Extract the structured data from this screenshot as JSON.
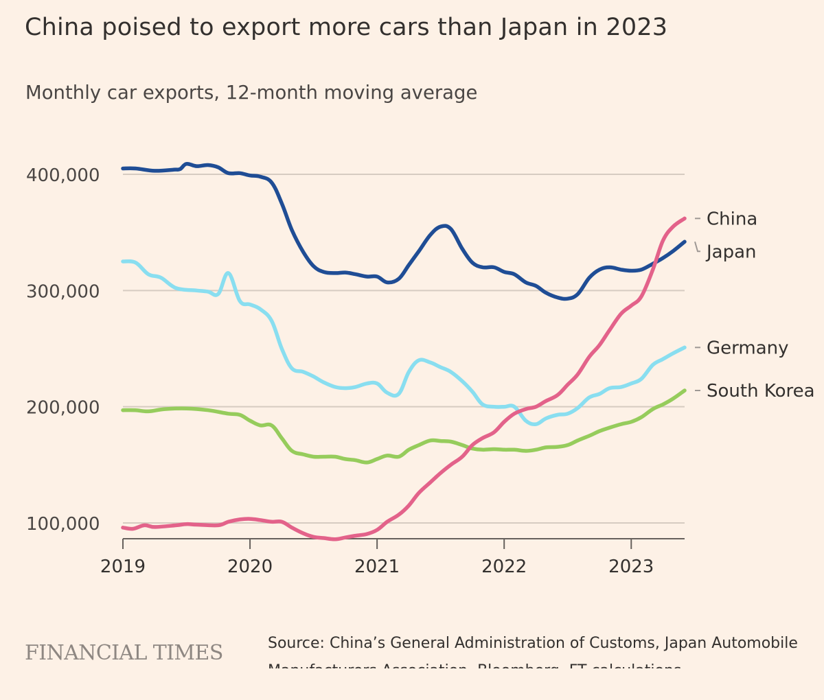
{
  "header": {
    "title": "China poised to export more cars than Japan in 2023",
    "subtitle": "Monthly car exports, 12-month moving average"
  },
  "footer": {
    "logo_text": "FINANCIAL TIMES",
    "source": "Source: China’s General Administration of Customs, Japan Automobile Manufacturers Association, Bloomberg, FT calculations"
  },
  "chart_data": {
    "type": "line",
    "title": "China poised to export more cars than Japan in 2023",
    "subtitle": "Monthly car exports, 12-month moving average",
    "xlabel": "",
    "ylabel": "",
    "xlim": [
      2019.0,
      2023.42
    ],
    "ylim": [
      85000,
      420000
    ],
    "x_ticks": [
      2019,
      2020,
      2021,
      2022,
      2023
    ],
    "x_tick_labels": [
      "2019",
      "2020",
      "2021",
      "2022",
      "2023"
    ],
    "y_ticks": [
      100000,
      200000,
      300000,
      400000
    ],
    "y_tick_labels": [
      "100,000",
      "200,000",
      "300,000",
      "400,000"
    ],
    "grid": "horizontal",
    "legend": "labels at right end of lines",
    "label_order": [
      "China",
      "Japan",
      "Germany",
      "South Korea"
    ],
    "series": [
      {
        "name": "Japan",
        "color": "#1F4D95",
        "points": [
          [
            2019.0,
            405000
          ],
          [
            2019.1,
            405000
          ],
          [
            2019.25,
            403000
          ],
          [
            2019.4,
            404000
          ],
          [
            2019.45,
            404500
          ],
          [
            2019.5,
            409000
          ],
          [
            2019.58,
            407000
          ],
          [
            2019.67,
            408000
          ],
          [
            2019.75,
            406000
          ],
          [
            2019.83,
            401000
          ],
          [
            2019.92,
            401000
          ],
          [
            2020.0,
            399000
          ],
          [
            2020.08,
            398000
          ],
          [
            2020.17,
            393000
          ],
          [
            2020.25,
            375000
          ],
          [
            2020.33,
            352000
          ],
          [
            2020.42,
            333000
          ],
          [
            2020.5,
            321000
          ],
          [
            2020.58,
            316000
          ],
          [
            2020.67,
            315000
          ],
          [
            2020.75,
            315500
          ],
          [
            2020.83,
            314000
          ],
          [
            2020.92,
            312000
          ],
          [
            2021.0,
            312000
          ],
          [
            2021.08,
            307000
          ],
          [
            2021.17,
            310000
          ],
          [
            2021.25,
            322000
          ],
          [
            2021.33,
            334000
          ],
          [
            2021.42,
            348000
          ],
          [
            2021.5,
            355000
          ],
          [
            2021.58,
            353000
          ],
          [
            2021.67,
            336000
          ],
          [
            2021.75,
            324000
          ],
          [
            2021.83,
            320000
          ],
          [
            2021.92,
            320000
          ],
          [
            2022.0,
            316000
          ],
          [
            2022.08,
            314000
          ],
          [
            2022.17,
            307000
          ],
          [
            2022.25,
            304000
          ],
          [
            2022.33,
            298000
          ],
          [
            2022.42,
            294000
          ],
          [
            2022.5,
            293000
          ],
          [
            2022.58,
            297000
          ],
          [
            2022.67,
            311000
          ],
          [
            2022.75,
            318000
          ],
          [
            2022.83,
            320000
          ],
          [
            2022.92,
            318000
          ],
          [
            2023.0,
            317000
          ],
          [
            2023.08,
            318000
          ],
          [
            2023.17,
            323000
          ],
          [
            2023.25,
            328000
          ],
          [
            2023.33,
            334000
          ],
          [
            2023.42,
            342000
          ]
        ]
      },
      {
        "name": "Germany",
        "color": "#89DEF0",
        "points": [
          [
            2019.0,
            325000
          ],
          [
            2019.1,
            324000
          ],
          [
            2019.2,
            314000
          ],
          [
            2019.3,
            311000
          ],
          [
            2019.42,
            302000
          ],
          [
            2019.58,
            300000
          ],
          [
            2019.67,
            299000
          ],
          [
            2019.75,
            297000
          ],
          [
            2019.83,
            315000
          ],
          [
            2019.92,
            291000
          ],
          [
            2020.0,
            288000
          ],
          [
            2020.08,
            284000
          ],
          [
            2020.17,
            274000
          ],
          [
            2020.25,
            250000
          ],
          [
            2020.33,
            233000
          ],
          [
            2020.42,
            230000
          ],
          [
            2020.5,
            226000
          ],
          [
            2020.58,
            221000
          ],
          [
            2020.67,
            217000
          ],
          [
            2020.75,
            216000
          ],
          [
            2020.83,
            217000
          ],
          [
            2020.92,
            220000
          ],
          [
            2021.0,
            220000
          ],
          [
            2021.08,
            212000
          ],
          [
            2021.17,
            211000
          ],
          [
            2021.25,
            230000
          ],
          [
            2021.33,
            240000
          ],
          [
            2021.42,
            238000
          ],
          [
            2021.5,
            234000
          ],
          [
            2021.58,
            230000
          ],
          [
            2021.67,
            222000
          ],
          [
            2021.75,
            213000
          ],
          [
            2021.83,
            202000
          ],
          [
            2021.92,
            200000
          ],
          [
            2022.0,
            200000
          ],
          [
            2022.08,
            200000
          ],
          [
            2022.17,
            188000
          ],
          [
            2022.25,
            185000
          ],
          [
            2022.33,
            190000
          ],
          [
            2022.42,
            193000
          ],
          [
            2022.5,
            194000
          ],
          [
            2022.58,
            199000
          ],
          [
            2022.67,
            208000
          ],
          [
            2022.75,
            211000
          ],
          [
            2022.83,
            216000
          ],
          [
            2022.92,
            217000
          ],
          [
            2023.0,
            220000
          ],
          [
            2023.08,
            224000
          ],
          [
            2023.17,
            236000
          ],
          [
            2023.25,
            241000
          ],
          [
            2023.33,
            246000
          ],
          [
            2023.42,
            251000
          ]
        ]
      },
      {
        "name": "South Korea",
        "color": "#96CC5C",
        "points": [
          [
            2019.0,
            197000
          ],
          [
            2019.1,
            197000
          ],
          [
            2019.2,
            196000
          ],
          [
            2019.33,
            198000
          ],
          [
            2019.5,
            198500
          ],
          [
            2019.67,
            197000
          ],
          [
            2019.83,
            194000
          ],
          [
            2019.92,
            193000
          ],
          [
            2020.0,
            188000
          ],
          [
            2020.08,
            184000
          ],
          [
            2020.17,
            184000
          ],
          [
            2020.25,
            173000
          ],
          [
            2020.33,
            162000
          ],
          [
            2020.42,
            159000
          ],
          [
            2020.5,
            157000
          ],
          [
            2020.58,
            157000
          ],
          [
            2020.67,
            157000
          ],
          [
            2020.75,
            155000
          ],
          [
            2020.83,
            154000
          ],
          [
            2020.92,
            152000
          ],
          [
            2021.0,
            155000
          ],
          [
            2021.08,
            158000
          ],
          [
            2021.17,
            157000
          ],
          [
            2021.25,
            163000
          ],
          [
            2021.33,
            167000
          ],
          [
            2021.42,
            171000
          ],
          [
            2021.5,
            170500
          ],
          [
            2021.58,
            170000
          ],
          [
            2021.67,
            167000
          ],
          [
            2021.75,
            164000
          ],
          [
            2021.83,
            163000
          ],
          [
            2021.92,
            163500
          ],
          [
            2022.0,
            163000
          ],
          [
            2022.08,
            163000
          ],
          [
            2022.17,
            162000
          ],
          [
            2022.25,
            163000
          ],
          [
            2022.33,
            165000
          ],
          [
            2022.42,
            165500
          ],
          [
            2022.5,
            167000
          ],
          [
            2022.58,
            171000
          ],
          [
            2022.67,
            175000
          ],
          [
            2022.75,
            179000
          ],
          [
            2022.83,
            182000
          ],
          [
            2022.92,
            185000
          ],
          [
            2023.0,
            187000
          ],
          [
            2023.08,
            191000
          ],
          [
            2023.17,
            198000
          ],
          [
            2023.25,
            202000
          ],
          [
            2023.33,
            207000
          ],
          [
            2023.42,
            214000
          ]
        ]
      },
      {
        "name": "China",
        "color": "#E3628A",
        "points": [
          [
            2019.0,
            96000
          ],
          [
            2019.08,
            95000
          ],
          [
            2019.17,
            98000
          ],
          [
            2019.25,
            96500
          ],
          [
            2019.42,
            98000
          ],
          [
            2019.5,
            99000
          ],
          [
            2019.58,
            98500
          ],
          [
            2019.75,
            98000
          ],
          [
            2019.83,
            101000
          ],
          [
            2019.92,
            103000
          ],
          [
            2020.0,
            103500
          ],
          [
            2020.08,
            102500
          ],
          [
            2020.17,
            101000
          ],
          [
            2020.25,
            101000
          ],
          [
            2020.33,
            96000
          ],
          [
            2020.42,
            91000
          ],
          [
            2020.5,
            88000
          ],
          [
            2020.58,
            87000
          ],
          [
            2020.67,
            86000
          ],
          [
            2020.75,
            87500
          ],
          [
            2020.83,
            89000
          ],
          [
            2020.92,
            90500
          ],
          [
            2021.0,
            94000
          ],
          [
            2021.08,
            101000
          ],
          [
            2021.17,
            107000
          ],
          [
            2021.25,
            115000
          ],
          [
            2021.33,
            126000
          ],
          [
            2021.42,
            135000
          ],
          [
            2021.5,
            143000
          ],
          [
            2021.58,
            150000
          ],
          [
            2021.67,
            157000
          ],
          [
            2021.75,
            167000
          ],
          [
            2021.83,
            173000
          ],
          [
            2021.92,
            178000
          ],
          [
            2022.0,
            187000
          ],
          [
            2022.08,
            194000
          ],
          [
            2022.17,
            198000
          ],
          [
            2022.25,
            200000
          ],
          [
            2022.33,
            205000
          ],
          [
            2022.42,
            210000
          ],
          [
            2022.5,
            219000
          ],
          [
            2022.58,
            228000
          ],
          [
            2022.67,
            243000
          ],
          [
            2022.75,
            253000
          ],
          [
            2022.83,
            266000
          ],
          [
            2022.92,
            280000
          ],
          [
            2023.0,
            287000
          ],
          [
            2023.08,
            295000
          ],
          [
            2023.17,
            318000
          ],
          [
            2023.25,
            343000
          ],
          [
            2023.33,
            355000
          ],
          [
            2023.42,
            362000
          ]
        ]
      }
    ]
  }
}
